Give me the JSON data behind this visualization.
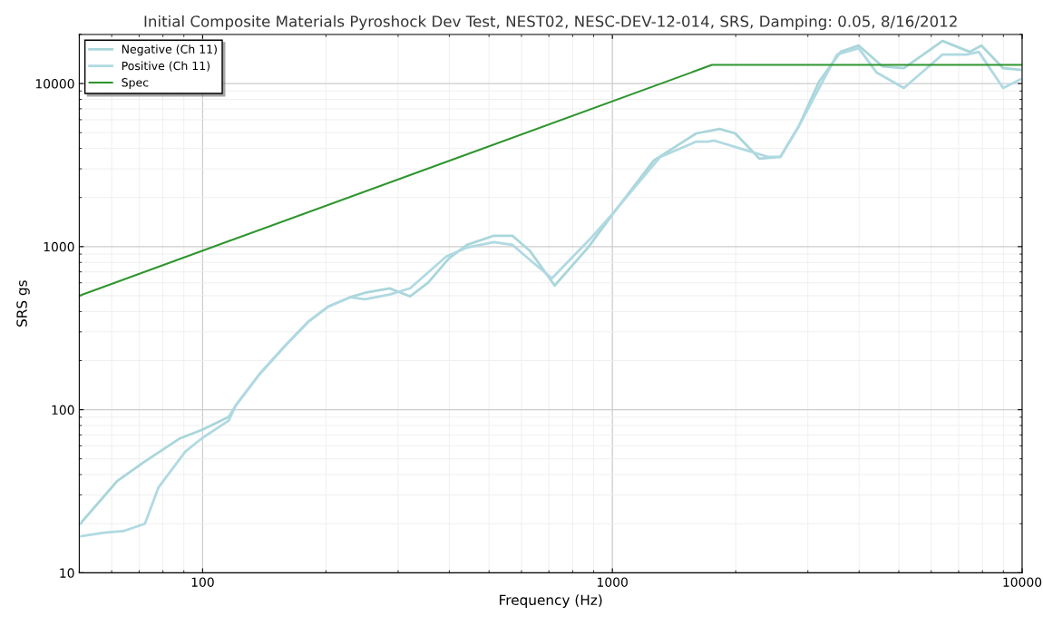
{
  "chart_data": {
    "type": "line",
    "title": "Initial Composite Materials Pyroshock Dev Test, NEST02, NESC-DEV-12-014, SRS, Damping: 0.05, 8/16/2012",
    "xlabel": "Frequency (Hz)",
    "ylabel": "SRS gs",
    "log": "xy",
    "grid": true,
    "legend": "top left",
    "line_style": "solid",
    "xlim": [
      50,
      10000
    ],
    "xticks": [
      100,
      1000,
      10000
    ],
    "ylim": [
      10,
      20000
    ],
    "yticks": [
      10,
      100,
      1000,
      10000
    ],
    "series": [
      {
        "name": "Negative (Ch 11)",
        "color": "#a9d6da",
        "x": [
          50,
          61.8,
          72.3,
          87.7,
          100,
          115.8,
          120.6,
          137.6,
          160,
          181,
          203,
          229,
          249,
          286,
          321,
          355,
          399,
          442,
          514,
          570,
          630,
          723,
          872,
          995,
          1262,
          1603,
          1828,
          1994,
          2286,
          2570,
          2843,
          3194,
          3606,
          3992,
          4557,
          5145,
          6392,
          7447,
          7956,
          8990,
          9950
        ],
        "values": [
          19.7,
          36.4,
          48.2,
          66.4,
          75.5,
          90.3,
          106.6,
          165,
          251,
          346,
          430,
          489,
          521,
          555,
          495,
          600,
          847,
          1026,
          1167,
          1167,
          938,
          577,
          987,
          1545,
          3372,
          4948,
          5272,
          4950,
          3459,
          3548,
          5408,
          10260,
          15640,
          17100,
          12760,
          12410,
          18240,
          15640,
          17100,
          12410,
          12110
        ]
      },
      {
        "name": "Positive (Ch 11)",
        "color": "#b0d9e2",
        "x": [
          50,
          57.5,
          64,
          72.3,
          78,
          90.8,
          100,
          115.8,
          120.6,
          137.6,
          160,
          181,
          203,
          229,
          249,
          286,
          321,
          393,
          442,
          514,
          570,
          630,
          712,
          885,
          995,
          1309,
          1603,
          1711,
          1774,
          2024,
          2404,
          2570,
          2843,
          3533,
          3992,
          4417,
          5145,
          6392,
          7339,
          7834,
          8990,
          9950
        ],
        "values": [
          16.7,
          17.6,
          18,
          20,
          33.3,
          55.5,
          67.3,
          85.8,
          106.6,
          165,
          251,
          346,
          430,
          489,
          476,
          508,
          555,
          869,
          987,
          1066,
          1026,
          826,
          639,
          1122,
          1565,
          3548,
          4406,
          4406,
          4467,
          4036,
          3548,
          3548,
          5408,
          15060,
          16480,
          11660,
          9380,
          15060,
          15060,
          15640,
          9380,
          10670
        ]
      },
      {
        "name": "Spec",
        "color": "#2e952e",
        "x": [
          50,
          1750,
          10000
        ],
        "values": [
          500,
          13000,
          13000
        ]
      }
    ]
  }
}
